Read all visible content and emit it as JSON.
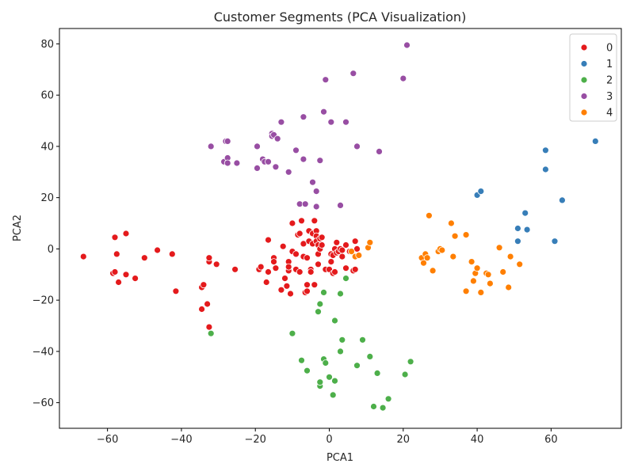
{
  "chart_data": {
    "type": "scatter",
    "title": "Customer Segments (PCA Visualization)",
    "xlabel": "PCA1",
    "ylabel": "PCA2",
    "xlim": [
      -73,
      79
    ],
    "ylim": [
      -70,
      86
    ],
    "xticks": [
      -60,
      -40,
      -20,
      0,
      20,
      40,
      60
    ],
    "yticks": [
      -60,
      -40,
      -20,
      0,
      20,
      40,
      60,
      80
    ],
    "grid": false,
    "legend_position": "top-right",
    "series": [
      {
        "name": "0",
        "color": "#e41a1c",
        "points": [
          [
            -66.5,
            -3
          ],
          [
            -58,
            4.5
          ],
          [
            -57.5,
            -2
          ],
          [
            -57,
            -13
          ],
          [
            -58.5,
            -9.5
          ],
          [
            -58,
            -9
          ],
          [
            -55,
            6
          ],
          [
            -55,
            -10
          ],
          [
            -52.5,
            -11.5
          ],
          [
            -50,
            -3.5
          ],
          [
            -46.5,
            -0.5
          ],
          [
            -42.5,
            -2
          ],
          [
            -41.5,
            -16.5
          ],
          [
            -34.5,
            -15
          ],
          [
            -34,
            -14
          ],
          [
            -34.5,
            -23.5
          ],
          [
            -33,
            -21.5
          ],
          [
            -32.5,
            -5
          ],
          [
            -32.5,
            -3.5
          ],
          [
            -32.5,
            -30.5
          ],
          [
            -30.5,
            -6
          ],
          [
            -25.5,
            -8
          ],
          [
            -19,
            -8
          ],
          [
            -18.5,
            -7
          ],
          [
            -17,
            -13
          ],
          [
            -16.5,
            -9
          ],
          [
            -16.5,
            3.5
          ],
          [
            -15,
            -3.5
          ],
          [
            -15,
            -5
          ],
          [
            -14.5,
            -7.5
          ],
          [
            -13,
            -16
          ],
          [
            -12.5,
            1
          ],
          [
            -12,
            -11.5
          ],
          [
            -11.5,
            -14.5
          ],
          [
            -11,
            -5
          ],
          [
            -11,
            -8.5
          ],
          [
            -11,
            -7
          ],
          [
            -10.5,
            -17.5
          ],
          [
            -10,
            -1
          ],
          [
            -10,
            10
          ],
          [
            -9,
            -8
          ],
          [
            -9,
            -2
          ],
          [
            -8.5,
            5.5
          ],
          [
            -8,
            -9
          ],
          [
            -8,
            6
          ],
          [
            -7.5,
            11
          ],
          [
            -7,
            2
          ],
          [
            -7,
            -3
          ],
          [
            -6.5,
            -17
          ],
          [
            -6,
            -3.5
          ],
          [
            -6,
            -16.5
          ],
          [
            -6,
            -14
          ],
          [
            -5.5,
            7
          ],
          [
            -5.5,
            3
          ],
          [
            -5,
            -8
          ],
          [
            -5,
            -9
          ],
          [
            -4.5,
            6
          ],
          [
            -4.5,
            2
          ],
          [
            -4,
            11
          ],
          [
            -4,
            -14
          ],
          [
            -3.5,
            7
          ],
          [
            -3.5,
            5
          ],
          [
            -3.5,
            3
          ],
          [
            -3,
            1.5
          ],
          [
            -3,
            -2
          ],
          [
            -3,
            -6
          ],
          [
            -2.5,
            0
          ],
          [
            -2.5,
            4
          ],
          [
            -2,
            1.5
          ],
          [
            -2,
            4.5
          ],
          [
            -1,
            -8
          ],
          [
            0,
            -8
          ],
          [
            0.5,
            -5
          ],
          [
            0.5,
            -2
          ],
          [
            1,
            -2.5
          ],
          [
            1,
            -9.5
          ],
          [
            1.5,
            -9
          ],
          [
            1.5,
            0
          ],
          [
            2,
            2.5
          ],
          [
            2,
            -1.5
          ],
          [
            2.5,
            -1
          ],
          [
            3,
            0
          ],
          [
            3.5,
            -0.5
          ],
          [
            3.5,
            -3
          ],
          [
            4.5,
            -7.5
          ],
          [
            4.5,
            1.5
          ],
          [
            5.5,
            -1
          ],
          [
            6.5,
            -8.5
          ],
          [
            7,
            -8
          ],
          [
            7,
            3
          ],
          [
            7.5,
            0
          ]
        ]
      },
      {
        "name": "1",
        "color": "#377eb8",
        "points": [
          [
            40,
            21
          ],
          [
            41,
            22.5
          ],
          [
            51,
            8
          ],
          [
            51,
            3
          ],
          [
            53,
            14
          ],
          [
            53.5,
            7.5
          ],
          [
            58.5,
            31
          ],
          [
            58.5,
            38.5
          ],
          [
            61,
            3
          ],
          [
            63,
            19
          ],
          [
            72,
            42
          ]
        ]
      },
      {
        "name": "2",
        "color": "#4daf4a",
        "points": [
          [
            -32,
            -33
          ],
          [
            -10,
            -33
          ],
          [
            -7.5,
            -43.5
          ],
          [
            -6,
            -47.5
          ],
          [
            -3,
            -24.5
          ],
          [
            -2.5,
            -21.5
          ],
          [
            -2.5,
            -53.5
          ],
          [
            -2.5,
            -52
          ],
          [
            -1.5,
            -43
          ],
          [
            -1.5,
            -17
          ],
          [
            -1,
            -44.5
          ],
          [
            0,
            -50
          ],
          [
            1,
            -57
          ],
          [
            1.5,
            -51.5
          ],
          [
            1.5,
            -28
          ],
          [
            3,
            -40
          ],
          [
            3,
            -17.5
          ],
          [
            3.5,
            -35.5
          ],
          [
            4.5,
            -11.5
          ],
          [
            7.5,
            -45.5
          ],
          [
            9,
            -35.5
          ],
          [
            11,
            -42
          ],
          [
            12,
            -61.5
          ],
          [
            13,
            -48.5
          ],
          [
            14.5,
            -62
          ],
          [
            16,
            -58.5
          ],
          [
            20.5,
            -49
          ],
          [
            22,
            -44
          ]
        ]
      },
      {
        "name": "3",
        "color": "#984ea3",
        "points": [
          [
            -32,
            40
          ],
          [
            -28.5,
            34
          ],
          [
            -28,
            42
          ],
          [
            -27.5,
            42
          ],
          [
            -27.5,
            35.5
          ],
          [
            -27.5,
            33.5
          ],
          [
            -25,
            33.5
          ],
          [
            -19.5,
            40
          ],
          [
            -19.5,
            31.5
          ],
          [
            -18,
            35
          ],
          [
            -17.5,
            34
          ],
          [
            -16.5,
            34
          ],
          [
            -15.5,
            45
          ],
          [
            -15.5,
            44
          ],
          [
            -15,
            44.5
          ],
          [
            -14.5,
            32
          ],
          [
            -14,
            43
          ],
          [
            -13,
            49.5
          ],
          [
            -11,
            30
          ],
          [
            -9,
            38.5
          ],
          [
            -8,
            17.5
          ],
          [
            -7,
            51.5
          ],
          [
            -7,
            35
          ],
          [
            -6.5,
            17.5
          ],
          [
            -4.5,
            26
          ],
          [
            -3.5,
            22.5
          ],
          [
            -3.5,
            16.5
          ],
          [
            -2.5,
            34.5
          ],
          [
            -1.5,
            53.5
          ],
          [
            -1,
            66
          ],
          [
            0.5,
            49.5
          ],
          [
            3,
            17
          ],
          [
            4.5,
            49.5
          ],
          [
            6.5,
            68.5
          ],
          [
            7.5,
            40
          ],
          [
            13.5,
            38
          ],
          [
            20,
            66.5
          ],
          [
            21,
            79.5
          ]
        ]
      },
      {
        "name": "4",
        "color": "#ff7f00",
        "points": [
          [
            6,
            -1
          ],
          [
            7,
            -3
          ],
          [
            8,
            -2.5
          ],
          [
            10.5,
            0.5
          ],
          [
            11,
            2.5
          ],
          [
            25,
            -3.5
          ],
          [
            25.5,
            -5.5
          ],
          [
            26,
            -2
          ],
          [
            26.5,
            -3.5
          ],
          [
            27,
            13
          ],
          [
            28,
            -8.5
          ],
          [
            29.5,
            -1
          ],
          [
            30,
            0
          ],
          [
            30.5,
            -0.5
          ],
          [
            33,
            10
          ],
          [
            33.5,
            -3
          ],
          [
            34,
            5
          ],
          [
            37,
            5.5
          ],
          [
            37,
            -16.5
          ],
          [
            38.5,
            -5
          ],
          [
            39,
            -12.5
          ],
          [
            39.5,
            -9.5
          ],
          [
            40,
            -7.5
          ],
          [
            41,
            -17
          ],
          [
            42.5,
            -9.5
          ],
          [
            43,
            -10
          ],
          [
            43.5,
            -13.5
          ],
          [
            46,
            0.5
          ],
          [
            47,
            -9
          ],
          [
            48.5,
            -15
          ],
          [
            49,
            -3
          ],
          [
            51.5,
            -6
          ]
        ]
      }
    ]
  }
}
